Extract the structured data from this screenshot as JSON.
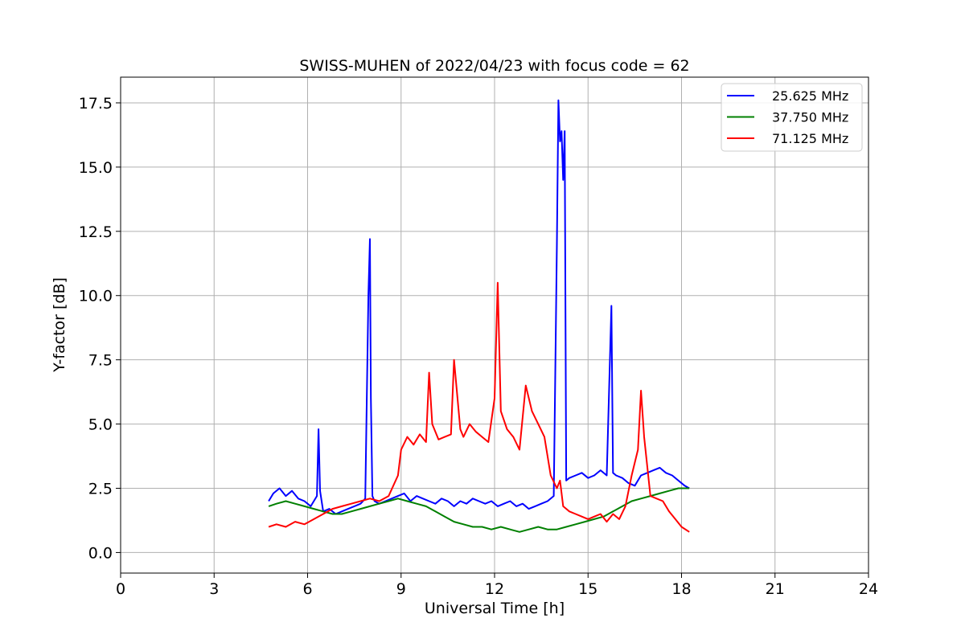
{
  "chart_data": {
    "type": "line",
    "title": "SWISS-MUHEN of 2022/04/23 with focus code = 62",
    "xlabel": "Universal Time [h]",
    "ylabel": "Y-factor [dB]",
    "xlim": [
      0,
      24
    ],
    "ylim": [
      -0.8,
      18.5
    ],
    "xticks": [
      0,
      3,
      6,
      9,
      12,
      15,
      18,
      21,
      24
    ],
    "xtick_labels": [
      "0",
      "3",
      "6",
      "9",
      "12",
      "15",
      "18",
      "21",
      "24"
    ],
    "yticks": [
      0.0,
      2.5,
      5.0,
      7.5,
      10.0,
      12.5,
      15.0,
      17.5
    ],
    "ytick_labels": [
      "0.0",
      "2.5",
      "5.0",
      "7.5",
      "10.0",
      "12.5",
      "15.0",
      "17.5"
    ],
    "grid": true,
    "legend_position": "top-right",
    "series": [
      {
        "name": "25.625 MHz",
        "color": "#0000ff",
        "x": [
          4.75,
          4.9,
          5.1,
          5.3,
          5.5,
          5.7,
          5.9,
          6.1,
          6.3,
          6.35,
          6.4,
          6.5,
          6.7,
          6.9,
          7.1,
          7.3,
          7.5,
          7.7,
          7.85,
          7.95,
          8.0,
          8.03,
          8.08,
          8.15,
          8.3,
          8.5,
          8.7,
          8.9,
          9.1,
          9.3,
          9.5,
          9.7,
          9.9,
          10.1,
          10.3,
          10.5,
          10.7,
          10.9,
          11.1,
          11.3,
          11.5,
          11.7,
          11.9,
          12.1,
          12.3,
          12.5,
          12.7,
          12.9,
          13.1,
          13.3,
          13.5,
          13.7,
          13.9,
          14.0,
          14.05,
          14.1,
          14.15,
          14.2,
          14.25,
          14.3,
          14.4,
          14.6,
          14.8,
          15.0,
          15.2,
          15.4,
          15.6,
          15.75,
          15.8,
          15.9,
          16.1,
          16.3,
          16.5,
          16.7,
          16.9,
          17.1,
          17.3,
          17.5,
          17.7,
          17.9,
          18.1,
          18.25
        ],
        "y": [
          2.0,
          2.3,
          2.5,
          2.2,
          2.4,
          2.1,
          2.0,
          1.8,
          2.2,
          4.8,
          2.4,
          1.6,
          1.7,
          1.5,
          1.6,
          1.7,
          1.8,
          1.9,
          2.1,
          10.0,
          12.2,
          6.0,
          2.2,
          2.0,
          1.9,
          2.0,
          2.1,
          2.2,
          2.3,
          2.0,
          2.2,
          2.1,
          2.0,
          1.9,
          2.1,
          2.0,
          1.8,
          2.0,
          1.9,
          2.1,
          2.0,
          1.9,
          2.0,
          1.8,
          1.9,
          2.0,
          1.8,
          1.9,
          1.7,
          1.8,
          1.9,
          2.0,
          2.2,
          12.0,
          17.6,
          16.0,
          16.4,
          14.5,
          16.4,
          2.8,
          2.9,
          3.0,
          3.1,
          2.9,
          3.0,
          3.2,
          3.0,
          9.6,
          3.1,
          3.0,
          2.9,
          2.7,
          2.6,
          3.0,
          3.1,
          3.2,
          3.3,
          3.1,
          3.0,
          2.8,
          2.6,
          2.5
        ]
      },
      {
        "name": "37.750 MHz",
        "color": "#008000",
        "x": [
          4.75,
          5.0,
          5.3,
          5.6,
          5.9,
          6.2,
          6.5,
          6.8,
          7.1,
          7.4,
          7.7,
          8.0,
          8.3,
          8.6,
          8.9,
          9.2,
          9.5,
          9.8,
          10.1,
          10.4,
          10.7,
          11.0,
          11.3,
          11.6,
          11.9,
          12.2,
          12.5,
          12.8,
          13.1,
          13.4,
          13.7,
          14.0,
          14.3,
          14.6,
          14.9,
          15.2,
          15.5,
          15.8,
          16.1,
          16.4,
          16.7,
          17.0,
          17.3,
          17.6,
          17.9,
          18.25
        ],
        "y": [
          1.8,
          1.9,
          2.0,
          1.9,
          1.8,
          1.7,
          1.6,
          1.5,
          1.5,
          1.6,
          1.7,
          1.8,
          1.9,
          2.0,
          2.1,
          2.0,
          1.9,
          1.8,
          1.6,
          1.4,
          1.2,
          1.1,
          1.0,
          1.0,
          0.9,
          1.0,
          0.9,
          0.8,
          0.9,
          1.0,
          0.9,
          0.9,
          1.0,
          1.1,
          1.2,
          1.3,
          1.4,
          1.6,
          1.8,
          2.0,
          2.1,
          2.2,
          2.3,
          2.4,
          2.5,
          2.5
        ]
      },
      {
        "name": "71.125 MHz",
        "color": "#ff0000",
        "x": [
          4.75,
          5.0,
          5.3,
          5.6,
          5.9,
          6.2,
          6.5,
          6.8,
          7.1,
          7.4,
          7.7,
          8.0,
          8.3,
          8.6,
          8.9,
          9.0,
          9.2,
          9.4,
          9.6,
          9.8,
          9.9,
          10.0,
          10.2,
          10.4,
          10.6,
          10.7,
          10.9,
          11.0,
          11.2,
          11.4,
          11.6,
          11.8,
          12.0,
          12.1,
          12.2,
          12.4,
          12.6,
          12.8,
          13.0,
          13.2,
          13.4,
          13.6,
          13.8,
          14.0,
          14.1,
          14.2,
          14.4,
          14.6,
          14.8,
          15.0,
          15.2,
          15.4,
          15.6,
          15.8,
          16.0,
          16.2,
          16.4,
          16.6,
          16.7,
          16.8,
          17.0,
          17.2,
          17.4,
          17.6,
          17.8,
          18.0,
          18.25
        ],
        "y": [
          1.0,
          1.1,
          1.0,
          1.2,
          1.1,
          1.3,
          1.5,
          1.7,
          1.8,
          1.9,
          2.0,
          2.1,
          2.0,
          2.2,
          3.0,
          4.0,
          4.5,
          4.2,
          4.6,
          4.3,
          7.0,
          5.0,
          4.4,
          4.5,
          4.6,
          7.5,
          4.8,
          4.5,
          5.0,
          4.7,
          4.5,
          4.3,
          6.0,
          10.5,
          5.5,
          4.8,
          4.5,
          4.0,
          6.5,
          5.5,
          5.0,
          4.5,
          3.0,
          2.5,
          2.8,
          1.8,
          1.6,
          1.5,
          1.4,
          1.3,
          1.4,
          1.5,
          1.2,
          1.5,
          1.3,
          1.8,
          3.0,
          4.0,
          6.3,
          4.5,
          2.2,
          2.1,
          2.0,
          1.6,
          1.3,
          1.0,
          0.8
        ]
      }
    ]
  }
}
